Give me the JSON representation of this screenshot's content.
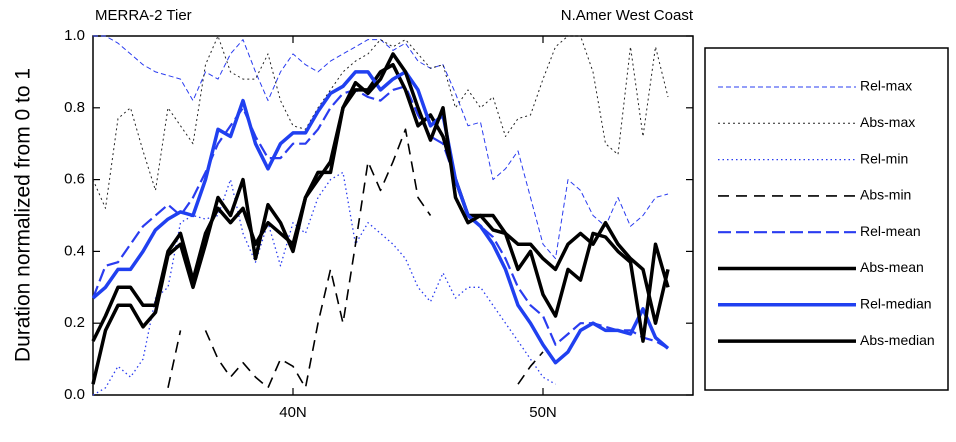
{
  "chart_data": {
    "type": "line",
    "title_left": "MERRA-2 Tier",
    "title_right": "N.Amer West Coast",
    "y_label": "Duration normalized from 0 to 1",
    "xlim": [
      32,
      56
    ],
    "xticks": [
      {
        "value": 40,
        "label": "40N"
      },
      {
        "value": 50,
        "label": "50N"
      }
    ],
    "ylim": [
      0,
      1
    ],
    "yticks": [
      {
        "value": 0,
        "label": "0.0"
      },
      0.2,
      0.4,
      0.6,
      0.8,
      {
        "value": 1,
        "label": "1.0"
      }
    ],
    "x": [
      32,
      32.5,
      33,
      33.5,
      34,
      34.5,
      35,
      35.5,
      36,
      36.5,
      37,
      37.5,
      38,
      38.5,
      39,
      39.5,
      40,
      40.5,
      41,
      41.5,
      42,
      42.5,
      43,
      43.5,
      44,
      44.5,
      45,
      45.5,
      46,
      46.5,
      47,
      47.5,
      48,
      48.5,
      49,
      49.5,
      50,
      50.5,
      51,
      51.5,
      52,
      52.5,
      53,
      53.5,
      54,
      54.5,
      55
    ],
    "series": [
      {
        "name": "Rel-max",
        "color": "#2a3cf0",
        "values": [
          1.0,
          1.0,
          0.98,
          0.95,
          0.92,
          0.9,
          0.89,
          0.88,
          0.82,
          0.9,
          0.88,
          0.95,
          0.99,
          0.9,
          0.82,
          0.9,
          0.95,
          0.92,
          0.9,
          0.93,
          0.95,
          0.97,
          0.99,
          0.99,
          0.96,
          0.98,
          0.93,
          0.91,
          0.92,
          0.84,
          0.75,
          0.76,
          0.6,
          0.63,
          0.68,
          0.55,
          0.42,
          0.38,
          0.6,
          0.57,
          0.5,
          0.47,
          0.55,
          0.47,
          0.5,
          0.55,
          0.56
        ]
      },
      {
        "name": "Abs-max",
        "color": "#222222",
        "values": [
          0.6,
          0.52,
          0.77,
          0.8,
          0.68,
          0.57,
          0.8,
          0.75,
          0.7,
          0.92,
          1.0,
          0.9,
          0.88,
          0.88,
          0.95,
          0.82,
          0.75,
          0.74,
          0.8,
          0.85,
          0.9,
          0.93,
          0.95,
          0.99,
          0.97,
          0.99,
          0.95,
          0.91,
          0.92,
          0.8,
          0.85,
          0.8,
          0.83,
          0.72,
          0.77,
          0.78,
          0.88,
          0.97,
          1.0,
          1.0,
          0.9,
          0.7,
          0.67,
          0.97,
          0.72,
          0.97,
          0.83
        ]
      },
      {
        "name": "Rel-min",
        "color": "#2a3cf0",
        "values": [
          0.0,
          0.02,
          0.08,
          0.05,
          0.1,
          0.27,
          0.3,
          0.48,
          0.5,
          0.49,
          0.5,
          0.6,
          0.45,
          0.37,
          0.48,
          0.36,
          0.48,
          0.45,
          0.55,
          0.6,
          0.62,
          0.42,
          0.48,
          0.45,
          0.42,
          0.38,
          0.3,
          0.26,
          0.34,
          0.27,
          0.3,
          0.3,
          0.25,
          0.2,
          0.15,
          0.1,
          0.05,
          0.03,
          null,
          null,
          null,
          null,
          null,
          null,
          null,
          null,
          null
        ]
      },
      {
        "name": "Abs-min",
        "color": "#000000",
        "values": [
          null,
          null,
          null,
          null,
          null,
          null,
          0.02,
          0.18,
          null,
          0.18,
          0.1,
          0.05,
          0.09,
          0.05,
          0.02,
          0.1,
          0.08,
          0.02,
          0.2,
          0.35,
          0.2,
          0.42,
          0.65,
          0.57,
          0.65,
          0.74,
          0.55,
          0.5,
          null,
          null,
          null,
          null,
          null,
          null,
          0.03,
          0.08,
          0.12,
          null,
          null,
          null,
          null,
          null,
          null,
          null,
          null,
          null,
          null
        ]
      },
      {
        "name": "Rel-mean",
        "color": "#2a3cf0",
        "values": [
          0.27,
          0.36,
          0.37,
          0.42,
          0.47,
          0.5,
          0.53,
          0.5,
          0.55,
          0.62,
          0.7,
          0.75,
          0.8,
          0.72,
          0.66,
          0.66,
          0.7,
          0.7,
          0.74,
          0.8,
          0.84,
          0.85,
          0.83,
          0.82,
          0.85,
          0.86,
          0.78,
          0.72,
          0.7,
          0.6,
          0.5,
          0.47,
          0.44,
          0.38,
          0.3,
          0.25,
          0.22,
          0.14,
          0.17,
          0.2,
          0.2,
          0.19,
          0.18,
          0.18,
          0.16,
          0.15,
          0.13
        ]
      },
      {
        "name": "Abs-mean",
        "color": "#000000",
        "values": [
          0.15,
          0.22,
          0.3,
          0.3,
          0.25,
          0.25,
          0.4,
          0.45,
          0.32,
          0.45,
          0.52,
          0.48,
          0.52,
          0.42,
          0.48,
          0.45,
          0.42,
          0.55,
          0.6,
          0.65,
          0.8,
          0.85,
          0.85,
          0.9,
          0.92,
          0.85,
          0.75,
          0.78,
          0.72,
          0.6,
          0.5,
          0.5,
          0.5,
          0.45,
          0.42,
          0.42,
          0.38,
          0.35,
          0.42,
          0.45,
          0.42,
          0.48,
          0.42,
          0.38,
          0.35,
          0.2,
          0.35
        ]
      },
      {
        "name": "Rel-median",
        "color": "#2040f0",
        "values": [
          0.27,
          0.3,
          0.35,
          0.35,
          0.4,
          0.46,
          0.49,
          0.51,
          0.5,
          0.6,
          0.74,
          0.72,
          0.82,
          0.7,
          0.63,
          0.7,
          0.73,
          0.73,
          0.79,
          0.84,
          0.86,
          0.9,
          0.9,
          0.85,
          0.88,
          0.9,
          0.85,
          0.75,
          0.78,
          0.6,
          0.5,
          0.47,
          0.42,
          0.35,
          0.25,
          0.2,
          0.14,
          0.09,
          0.12,
          0.18,
          0.2,
          0.18,
          0.18,
          0.17,
          0.24,
          0.16,
          0.13
        ]
      },
      {
        "name": "Abs-median",
        "color": "#000000",
        "values": [
          0.03,
          0.18,
          0.25,
          0.25,
          0.19,
          0.23,
          0.39,
          0.42,
          0.3,
          0.42,
          0.55,
          0.5,
          0.6,
          0.38,
          0.53,
          0.48,
          0.4,
          0.55,
          0.62,
          0.62,
          0.8,
          0.87,
          0.84,
          0.88,
          0.95,
          0.9,
          0.8,
          0.71,
          0.8,
          0.55,
          0.48,
          0.5,
          0.46,
          0.45,
          0.35,
          0.4,
          0.28,
          0.22,
          0.35,
          0.32,
          0.45,
          0.44,
          0.4,
          0.37,
          0.15,
          0.42,
          0.3
        ]
      }
    ]
  }
}
